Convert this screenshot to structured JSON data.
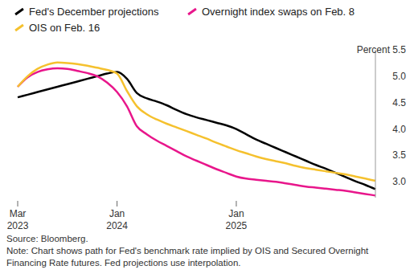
{
  "chart_data": {
    "type": "line",
    "categories": [
      "Mar 2023",
      null,
      null,
      null,
      null,
      null,
      null,
      null,
      null,
      null,
      "Jan 2024",
      null,
      null,
      null,
      null,
      null,
      null,
      null,
      null,
      null,
      null,
      null,
      "Jan 2025",
      null,
      null,
      null,
      null,
      null,
      null,
      null,
      null,
      null,
      null,
      null,
      null,
      null,
      null
    ],
    "series": [
      {
        "name": "Fed's December projections",
        "color": "#000000",
        "values": [
          4.6,
          4.65,
          4.7,
          4.75,
          4.8,
          4.85,
          4.9,
          4.95,
          5.0,
          5.05,
          5.08,
          4.95,
          4.68,
          4.58,
          4.52,
          4.45,
          4.36,
          4.28,
          4.22,
          4.17,
          4.12,
          4.07,
          4.0,
          3.9,
          3.8,
          3.72,
          3.64,
          3.56,
          3.48,
          3.4,
          3.32,
          3.25,
          3.17,
          3.09,
          3.01,
          2.94,
          2.86
        ]
      },
      {
        "name": "Overnight index swaps on Feb. 8",
        "color": "#e8168b",
        "values": [
          4.8,
          4.98,
          5.08,
          5.13,
          5.15,
          5.14,
          5.1,
          5.06,
          5.0,
          4.88,
          4.7,
          4.43,
          4.05,
          3.9,
          3.78,
          3.68,
          3.58,
          3.48,
          3.4,
          3.32,
          3.24,
          3.17,
          3.1,
          3.06,
          3.04,
          3.02,
          3.0,
          2.97,
          2.94,
          2.91,
          2.89,
          2.87,
          2.85,
          2.83,
          2.8,
          2.77,
          2.74
        ]
      },
      {
        "name": "OIS on Feb. 16",
        "color": "#f5c12e",
        "values": [
          4.8,
          5.0,
          5.14,
          5.22,
          5.26,
          5.25,
          5.23,
          5.2,
          5.16,
          5.12,
          5.05,
          4.72,
          4.43,
          4.28,
          4.18,
          4.1,
          4.03,
          3.96,
          3.89,
          3.82,
          3.74,
          3.67,
          3.6,
          3.54,
          3.48,
          3.43,
          3.39,
          3.35,
          3.3,
          3.26,
          3.23,
          3.2,
          3.17,
          3.14,
          3.1,
          3.06,
          3.02
        ]
      }
    ],
    "ylim": [
      2.7,
      5.5
    ],
    "yticks": [
      {
        "value": 3,
        "label": "3.0"
      },
      3.5,
      {
        "value": 4,
        "label": "4.0"
      },
      4.5,
      {
        "value": 5,
        "label": "5.0"
      },
      {
        "value": 5.5,
        "label": "Percent 5.5"
      }
    ],
    "grid": false,
    "legend": "top",
    "source": "Source: Bloomberg.",
    "note": "Note: Chart shows path for Fed's benchmark rate implied by OIS and Secured Overnight Financing Rate futures. Fed projections use interpolation."
  }
}
